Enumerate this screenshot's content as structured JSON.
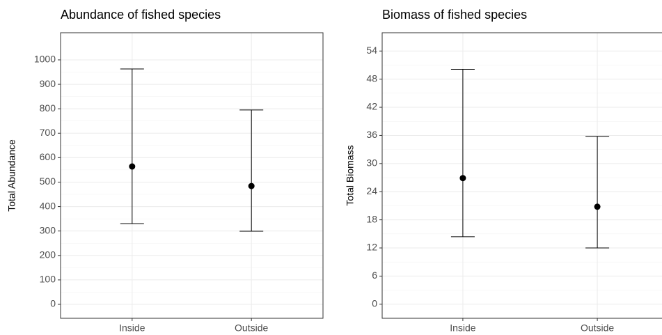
{
  "chart_data": [
    {
      "type": "errorbar",
      "title": "Abundance of fished species",
      "y_label": "Total Abundance",
      "categories": [
        "Inside",
        "Outside"
      ],
      "values": [
        564,
        484
      ],
      "lower": [
        330,
        299
      ],
      "upper": [
        963,
        795
      ],
      "color": "#000000",
      "ylim": [
        -57,
        1111
      ],
      "yticks": [
        0,
        100,
        200,
        300,
        400,
        500,
        600,
        700,
        800,
        900,
        1000
      ],
      "grid": true
    },
    {
      "type": "errorbar",
      "title": "Biomass of fished species",
      "y_label": "Total Biomass",
      "categories": [
        "Inside",
        "Outside"
      ],
      "values": [
        26.9,
        20.8
      ],
      "lower": [
        14.4,
        12.0
      ],
      "upper": [
        50.1,
        35.8
      ],
      "color": "#000000",
      "ylim": [
        -3,
        57.9
      ],
      "yticks": [
        0,
        6,
        12,
        18,
        24,
        30,
        36,
        42,
        48,
        54
      ],
      "grid": true
    }
  ]
}
